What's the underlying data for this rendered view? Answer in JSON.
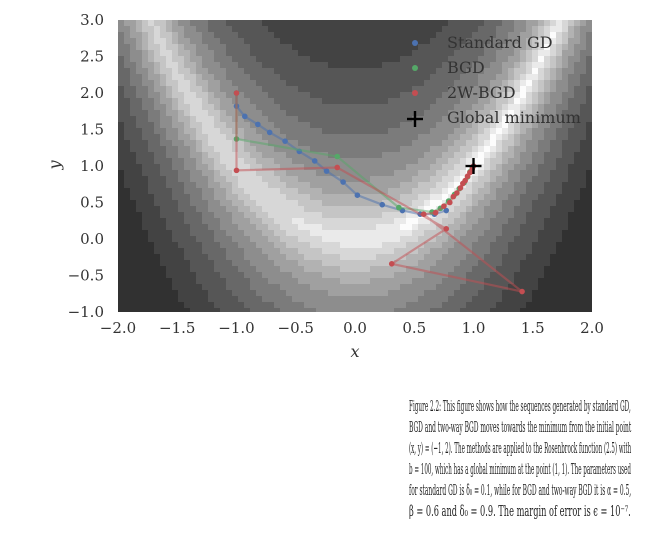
{
  "chart_data": {
    "type": "line",
    "title": "",
    "xlabel": "x",
    "ylabel": "y",
    "xlim": [
      -2.0,
      2.0
    ],
    "ylim": [
      -1.0,
      3.0
    ],
    "xticks": [
      "−2.0",
      "−1.5",
      "−1.0",
      "−0.5",
      "0.0",
      "0.5",
      "1.0",
      "1.5",
      "2.0"
    ],
    "yticks": [
      "3.0",
      "2.5",
      "2.0",
      "1.5",
      "1.0",
      "0.5",
      "0.0",
      "−0.5",
      "−1.0"
    ],
    "xtick_values": [
      -2.0,
      -1.5,
      -1.0,
      -0.5,
      0.0,
      0.5,
      1.0,
      1.5,
      2.0
    ],
    "ytick_values": [
      3.0,
      2.5,
      2.0,
      1.5,
      1.0,
      0.5,
      0.0,
      -0.5,
      -1.0
    ],
    "background": "filled contour of Rosenbrock function (grayscale)",
    "legend_position": "top-right",
    "series": [
      {
        "name": "Standard GD",
        "color": "#4c72b0",
        "points": [
          [
            -1.0,
            2.0
          ],
          [
            -1.0,
            1.82
          ],
          [
            -0.93,
            1.68
          ],
          [
            -0.82,
            1.57
          ],
          [
            -0.72,
            1.46
          ],
          [
            -0.59,
            1.34
          ],
          [
            -0.47,
            1.2
          ],
          [
            -0.34,
            1.07
          ],
          [
            -0.24,
            0.93
          ],
          [
            -0.1,
            0.78
          ],
          [
            0.02,
            0.6
          ],
          [
            0.23,
            0.47
          ],
          [
            0.4,
            0.39
          ],
          [
            0.55,
            0.34
          ],
          [
            0.67,
            0.34
          ],
          [
            0.77,
            0.39
          ]
        ]
      },
      {
        "name": "BGD",
        "color": "#55a868",
        "points": [
          [
            -1.0,
            2.0
          ],
          [
            -1.0,
            1.37
          ],
          [
            -0.15,
            1.13
          ],
          [
            0.37,
            0.43
          ],
          [
            0.65,
            0.37
          ],
          [
            0.72,
            0.42
          ],
          [
            0.79,
            0.52
          ],
          [
            0.84,
            0.61
          ],
          [
            0.88,
            0.69
          ],
          [
            0.92,
            0.77
          ],
          [
            0.95,
            0.85
          ],
          [
            0.97,
            0.92
          ],
          [
            0.99,
            0.97
          ]
        ]
      },
      {
        "name": "2W-BGD",
        "color": "#c44e52",
        "points": [
          [
            -1.0,
            2.0
          ],
          [
            -1.0,
            0.94
          ],
          [
            -0.15,
            0.98
          ],
          [
            0.77,
            0.14
          ],
          [
            0.31,
            -0.34
          ],
          [
            1.41,
            -0.72
          ],
          [
            0.58,
            0.34
          ],
          [
            0.68,
            0.36
          ],
          [
            0.75,
            0.45
          ],
          [
            0.8,
            0.5
          ],
          [
            0.83,
            0.58
          ],
          [
            0.86,
            0.63
          ],
          [
            0.89,
            0.7
          ],
          [
            0.91,
            0.76
          ],
          [
            0.93,
            0.8
          ],
          [
            0.95,
            0.86
          ],
          [
            0.97,
            0.91
          ],
          [
            0.99,
            0.96
          ],
          [
            1.0,
            1.0
          ]
        ]
      },
      {
        "name": "Global minimum",
        "color": "#000000",
        "marker": "plus",
        "points": [
          [
            1.0,
            1.0
          ]
        ]
      }
    ]
  },
  "caption": {
    "lines": [
      "Figure 2.2: This figure shows how the sequences generated by standard GD,",
      "BGD and two-way BGD moves towards the minimum from the initial point",
      "(x, y) = (−1, 2). The methods are applied to the Rosenbrock function (2.5) with",
      "b = 100, which has a global minimum at the point (1, 1). The parameters used",
      "for standard GD is δ₀ = 0.1, while for BGD and two-way BGD it is α = 0.5,",
      "β = 0.6 and δ₀ = 0.9. The margin of error is ϵ = 10⁻⁷."
    ]
  }
}
